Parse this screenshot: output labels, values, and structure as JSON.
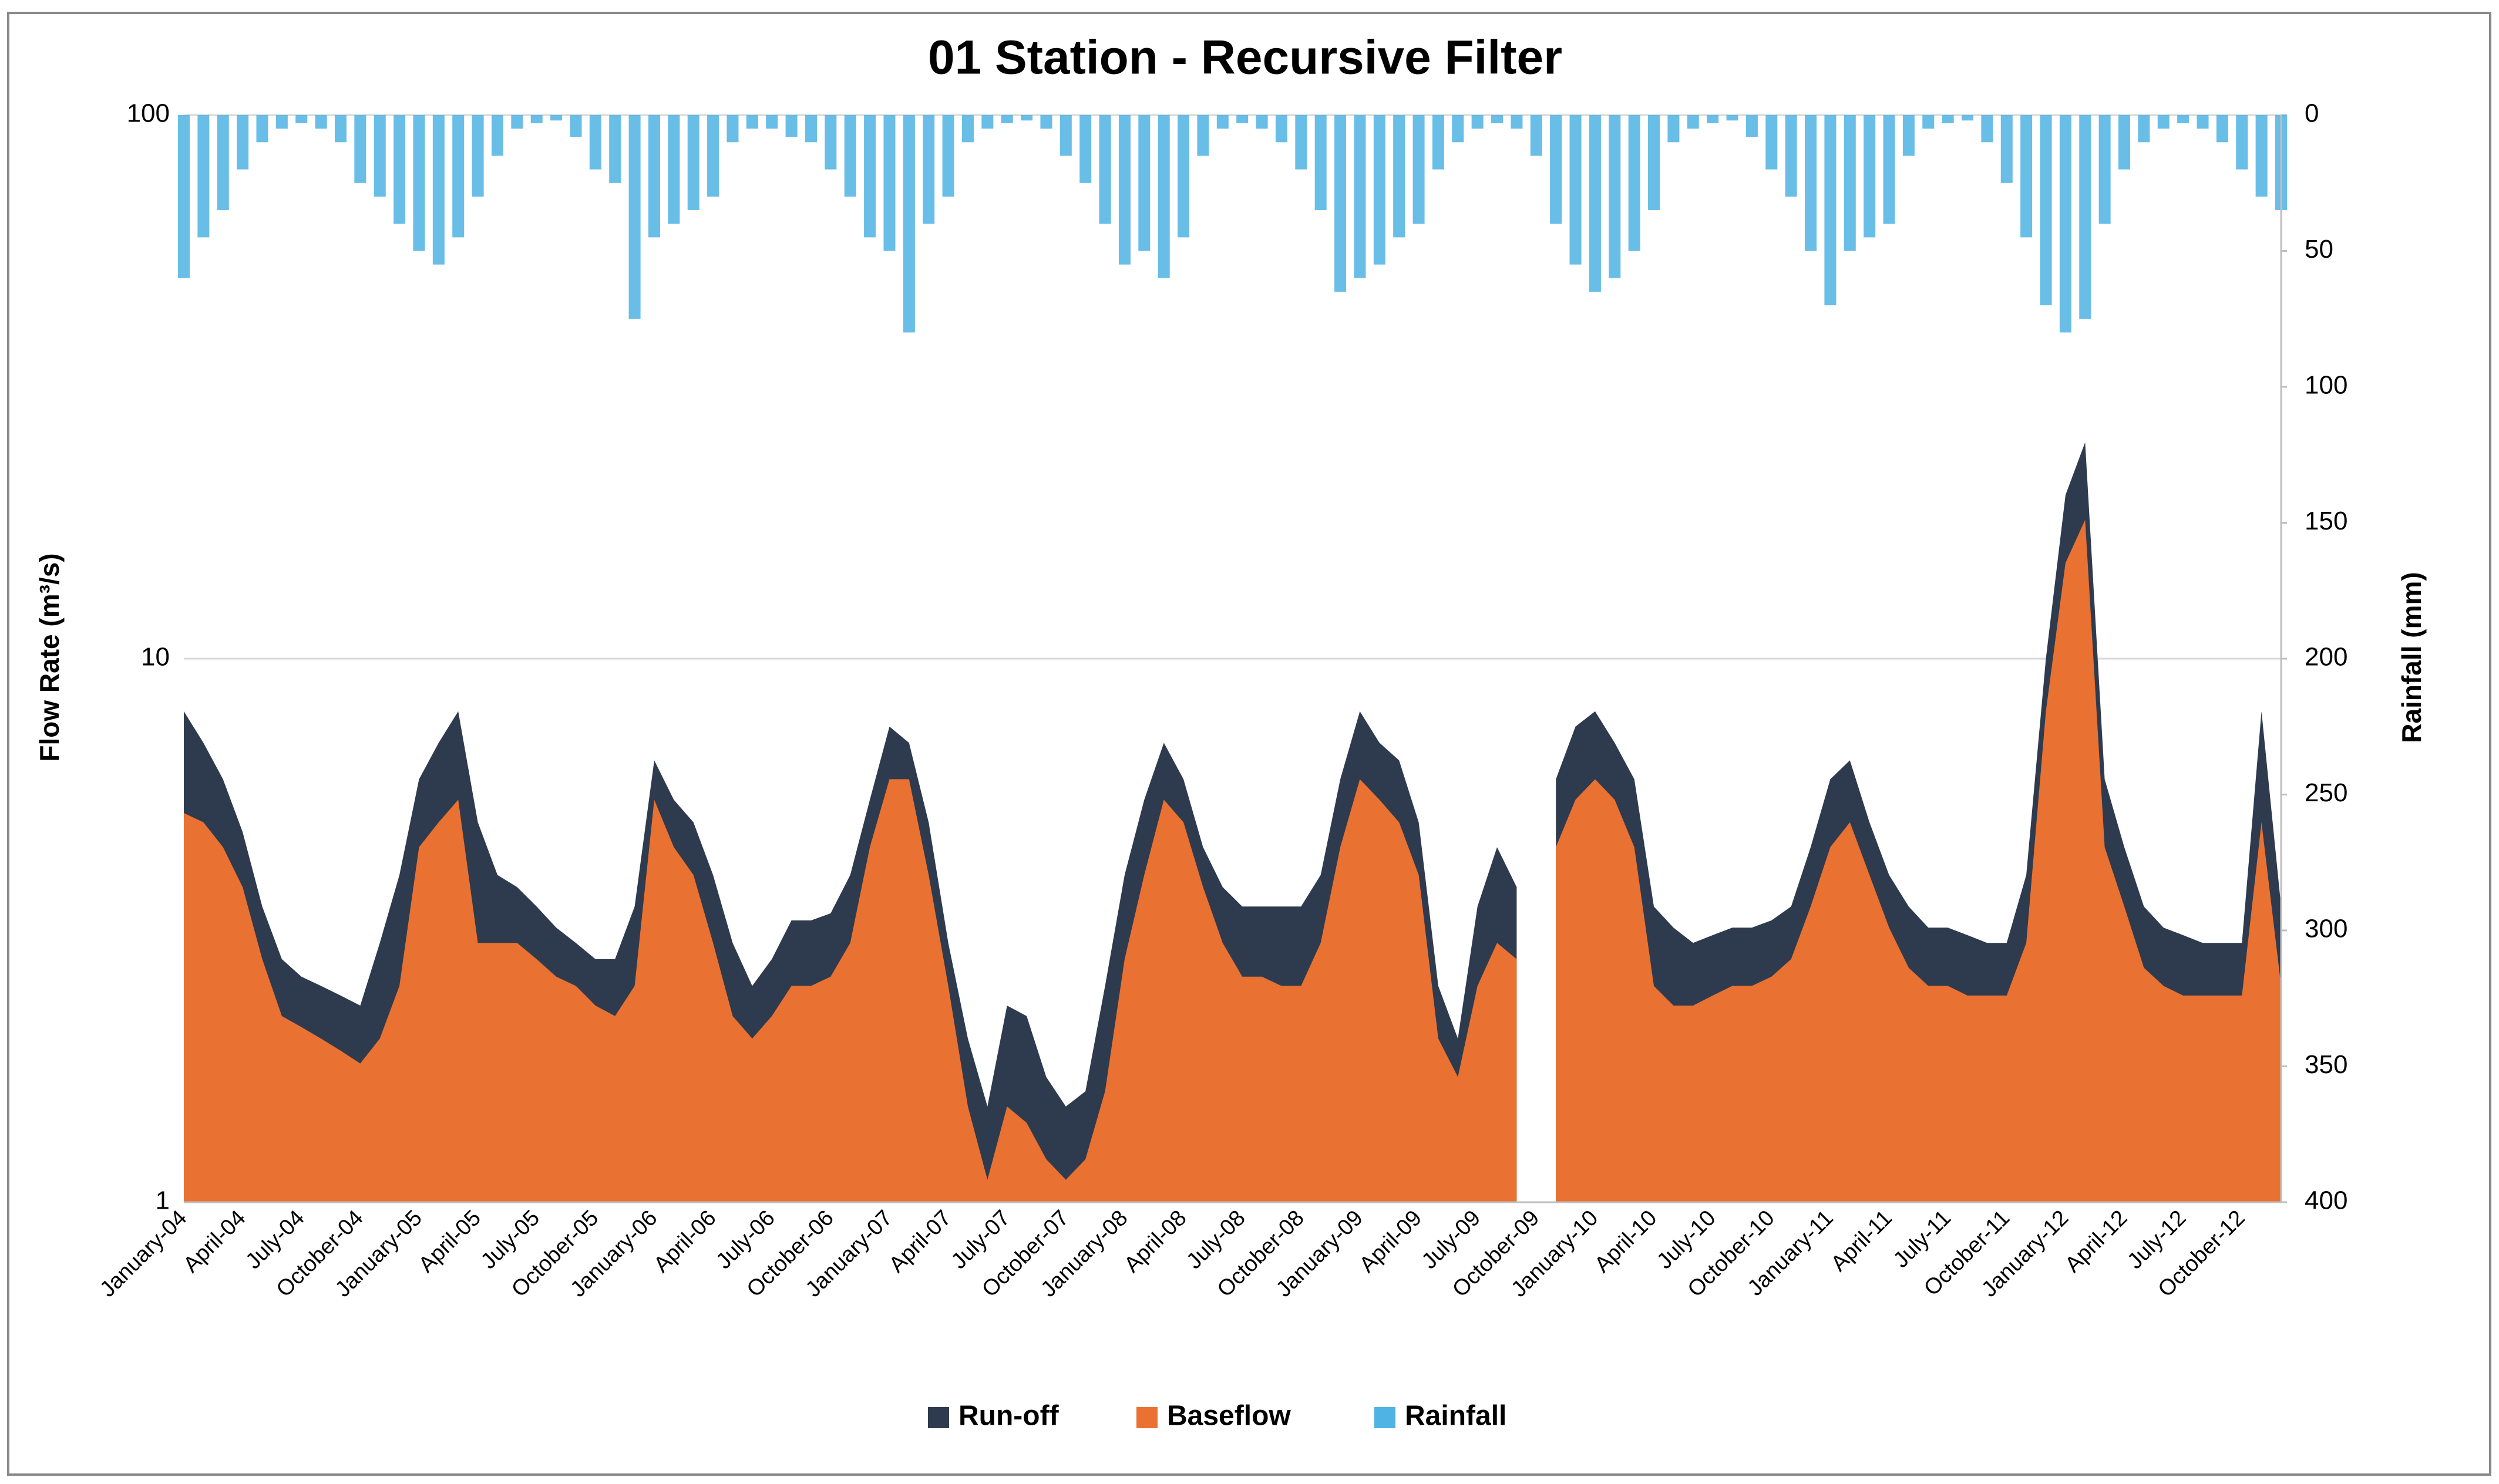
{
  "chart_data": {
    "type": "area",
    "title": "01 Station - Recursive Filter",
    "y_label": "Flow Rate (m³/s)",
    "y2_label": "Rainfall (mm)",
    "y_log": true,
    "ylim": [
      1,
      100
    ],
    "yticks": [
      1,
      10,
      100
    ],
    "y2lim": [
      0,
      400
    ],
    "y2_inverted": true,
    "y2ticks": [
      0,
      50,
      100,
      150,
      200,
      250,
      300,
      350,
      400
    ],
    "grid": true,
    "legend": "bottom",
    "categories": [
      "January-04",
      null,
      null,
      "April-04",
      null,
      null,
      "July-04",
      null,
      null,
      "October-04",
      null,
      null,
      "January-05",
      null,
      null,
      "April-05",
      null,
      null,
      "July-05",
      null,
      null,
      "October-05",
      null,
      null,
      "January-06",
      null,
      null,
      "April-06",
      null,
      null,
      "July-06",
      null,
      null,
      "October-06",
      null,
      null,
      "January-07",
      null,
      null,
      "April-07",
      null,
      null,
      "July-07",
      null,
      null,
      "October-07",
      null,
      null,
      "January-08",
      null,
      null,
      "April-08",
      null,
      null,
      "July-08",
      null,
      null,
      "October-08",
      null,
      null,
      "January-09",
      null,
      null,
      "April-09",
      null,
      null,
      "July-09",
      null,
      null,
      "October-09",
      null,
      null,
      "January-10",
      null,
      null,
      "April-10",
      null,
      null,
      "July-10",
      null,
      null,
      "October-10",
      null,
      null,
      "January-11",
      null,
      null,
      "April-11",
      null,
      null,
      "July-11",
      null,
      null,
      "October-11",
      null,
      null,
      "January-12",
      null,
      null,
      "April-12",
      null,
      null,
      "July-12",
      null,
      null,
      "October-12",
      null,
      null
    ],
    "series": [
      {
        "name": "Run-off",
        "type": "area",
        "color": "#2e3b4e",
        "values": [
          2.8,
          2,
          1.5,
          1,
          0.7,
          0.6,
          0.5,
          0.5,
          0.5,
          0.5,
          1,
          1.5,
          1.5,
          2,
          2.5,
          2,
          1,
          0.8,
          0.7,
          0.6,
          0.5,
          0.5,
          0.6,
          1,
          1,
          1,
          1,
          1,
          0.8,
          0.5,
          0.6,
          0.8,
          0.8,
          0.8,
          1,
          1,
          1.5,
          1,
          1,
          0.5,
          0.5,
          0.4,
          0.8,
          0.8,
          0.5,
          0.4,
          0.4,
          0.9,
          1.2,
          1.5,
          1.5,
          1,
          0.7,
          0.8,
          0.9,
          0.9,
          1,
          1,
          1,
          1.5,
          2,
          1.5,
          1.5,
          1,
          0.5,
          0.3,
          1,
          1.5,
          1,
          null,
          1.5,
          2,
          2,
          1.5,
          1.5,
          1,
          0.9,
          0.7,
          0.7,
          0.7,
          0.7,
          0.7,
          0.7,
          1,
          1.5,
          1.5,
          1,
          0.8,
          0.8,
          0.7,
          0.7,
          0.7,
          0.6,
          0.6,
          1,
          2,
          5,
          7,
          1.5,
          1,
          0.8,
          0.7,
          0.7,
          0.6,
          0.6,
          0.6,
          3,
          1
        ]
      },
      {
        "name": "Baseflow",
        "type": "area",
        "color": "#e97132",
        "values": [
          5.2,
          5,
          4.5,
          3.8,
          2.8,
          2.2,
          2.1,
          2,
          1.9,
          1.8,
          2,
          2.5,
          4.5,
          5,
          5.5,
          3,
          3,
          3,
          2.8,
          2.6,
          2.5,
          2.3,
          2.2,
          2.5,
          5.5,
          4.5,
          4,
          3,
          2.2,
          2,
          2.2,
          2.5,
          2.5,
          2.6,
          3,
          4.5,
          6,
          6,
          4,
          2.5,
          1.5,
          1.1,
          1.5,
          1.4,
          1.2,
          1.1,
          1.2,
          1.6,
          2.8,
          4,
          5.5,
          5,
          3.8,
          3,
          2.6,
          2.6,
          2.5,
          2.5,
          3,
          4.5,
          6,
          5.5,
          5,
          4,
          2,
          1.7,
          2.5,
          3,
          2.8,
          null,
          4.5,
          5.5,
          6,
          5.5,
          4.5,
          2.5,
          2.3,
          2.3,
          2.4,
          2.5,
          2.5,
          2.6,
          2.8,
          3.5,
          4.5,
          5,
          4,
          3.2,
          2.7,
          2.5,
          2.5,
          2.4,
          2.4,
          2.4,
          3,
          8,
          15,
          18,
          4.5,
          3.5,
          2.7,
          2.5,
          2.4,
          2.4,
          2.4,
          2.4,
          5,
          2.5
        ]
      },
      {
        "name": "Rainfall",
        "type": "bar",
        "axis": "y2",
        "color": "#4fb3e3",
        "values": [
          60,
          45,
          35,
          20,
          10,
          5,
          3,
          5,
          10,
          25,
          30,
          40,
          50,
          55,
          45,
          30,
          15,
          5,
          3,
          2,
          8,
          20,
          25,
          75,
          45,
          40,
          35,
          30,
          10,
          5,
          5,
          8,
          10,
          20,
          30,
          45,
          50,
          80,
          40,
          30,
          10,
          5,
          3,
          2,
          5,
          15,
          25,
          40,
          55,
          50,
          60,
          45,
          15,
          5,
          3,
          5,
          10,
          20,
          35,
          65,
          60,
          55,
          45,
          40,
          20,
          10,
          5,
          3,
          5,
          15,
          40,
          55,
          65,
          60,
          50,
          35,
          10,
          5,
          3,
          2,
          8,
          20,
          30,
          50,
          70,
          50,
          45,
          40,
          15,
          5,
          3,
          2,
          10,
          25,
          45,
          70,
          80,
          75,
          40,
          20,
          10,
          5,
          3,
          5,
          10,
          20,
          30,
          35
        ]
      }
    ]
  }
}
